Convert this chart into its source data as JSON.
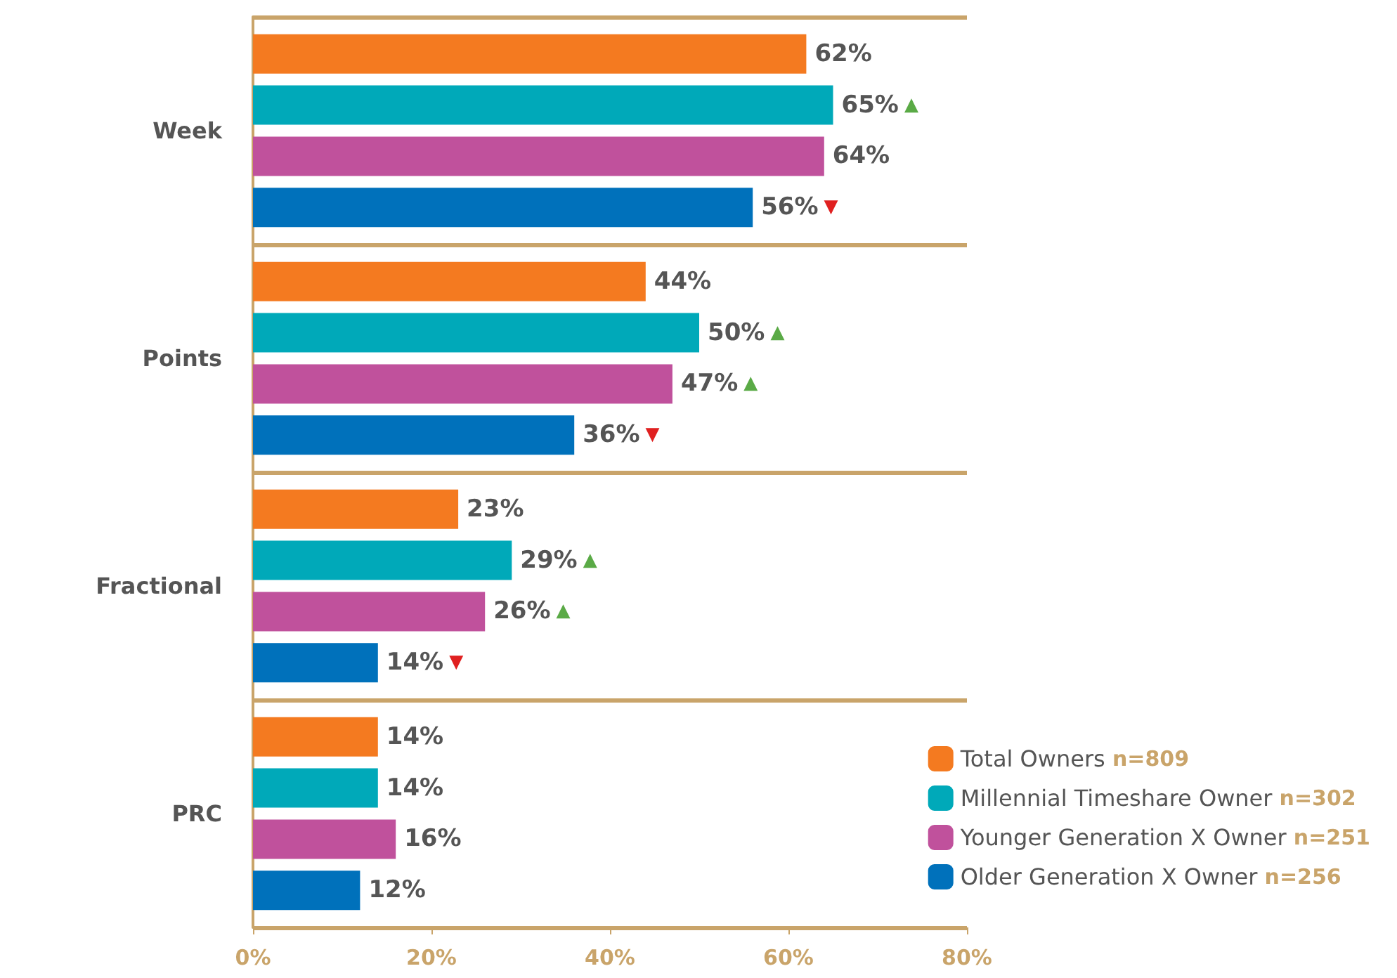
{
  "chart_data": {
    "type": "bar",
    "orientation": "horizontal",
    "categories": [
      "Week",
      "Points",
      "Fractional",
      "PRC"
    ],
    "series": [
      {
        "name": "Total Owners n=809",
        "color": "#f47a20",
        "values": [
          62,
          44,
          23,
          14
        ],
        "value_labels": [
          "62%",
          "44%",
          "23%",
          "14%"
        ]
      },
      {
        "name": "Millennial Timeshare Owner n=302",
        "color": "#00a9b9",
        "values": [
          65,
          50,
          29,
          14
        ],
        "value_labels": [
          "65% ▲",
          "50% ▲",
          "29% ▲",
          "14%"
        ]
      },
      {
        "name": "Younger Generation X Owner n=251",
        "color": "#c0519c",
        "values": [
          64,
          47,
          26,
          16
        ],
        "value_labels": [
          "64%",
          "47% ▲",
          "26% ▲",
          "16%"
        ]
      },
      {
        "name": "Older Generation X Owner n=256",
        "color": "#0071bb",
        "values": [
          56,
          36,
          14,
          12
        ],
        "value_labels": [
          "56% ▼",
          "36% ▼",
          "14% ▼",
          "12%"
        ]
      }
    ],
    "xlim": [
      0,
      80
    ],
    "xticks": [
      {
        "value": 0,
        "label": "0%"
      },
      {
        "value": 20,
        "label": "20%"
      },
      {
        "value": 40,
        "label": "40%"
      },
      {
        "value": 60,
        "label": "60%"
      },
      {
        "value": 80,
        "label": "80%"
      }
    ],
    "grid": false,
    "legend": "bottom right"
  }
}
